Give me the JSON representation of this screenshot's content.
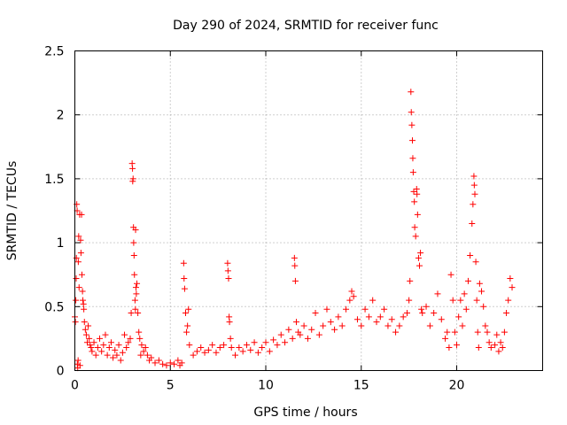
{
  "chart_data": {
    "type": "scatter",
    "title": "Day 290 of 2024, SRMTID for receiver func",
    "xlabel": "GPS time / hours",
    "ylabel": "SRMTID / TECUs",
    "xlim": [
      0,
      24.5
    ],
    "ylim": [
      0,
      2.5
    ],
    "xticks": [
      0,
      5,
      10,
      15,
      20
    ],
    "xtick_labels": [
      "0",
      "5",
      "10",
      "15",
      "20"
    ],
    "yticks": [
      0,
      0.5,
      1,
      1.5,
      2,
      2.5
    ],
    "ytick_labels": [
      "0",
      "0.5",
      "1",
      "1.5",
      "2",
      "2.5"
    ],
    "grid": true,
    "marker": "+",
    "color": "#ff0000",
    "series": [
      {
        "name": "SRMTID",
        "points": [
          [
            0.0,
            0.42
          ],
          [
            0.03,
            0.38
          ],
          [
            0.05,
            0.55
          ],
          [
            0.07,
            0.72
          ],
          [
            0.08,
            0.88
          ],
          [
            0.1,
            1.3
          ],
          [
            0.12,
            1.25
          ],
          [
            0.13,
            0.05
          ],
          [
            0.15,
            0.02
          ],
          [
            0.17,
            0.08
          ],
          [
            0.18,
            0.85
          ],
          [
            0.2,
            1.05
          ],
          [
            0.22,
            0.65
          ],
          [
            0.25,
            1.22
          ],
          [
            0.27,
            0.04
          ],
          [
            0.3,
            1.02
          ],
          [
            0.32,
            0.92
          ],
          [
            0.35,
            1.22
          ],
          [
            0.37,
            0.75
          ],
          [
            0.4,
            0.62
          ],
          [
            0.42,
            0.55
          ],
          [
            0.45,
            0.52
          ],
          [
            0.47,
            0.48
          ],
          [
            0.5,
            0.38
          ],
          [
            0.55,
            0.32
          ],
          [
            0.6,
            0.28
          ],
          [
            0.65,
            0.22
          ],
          [
            0.7,
            0.35
          ],
          [
            0.75,
            0.25
          ],
          [
            0.8,
            0.2
          ],
          [
            0.85,
            0.18
          ],
          [
            0.9,
            0.15
          ],
          [
            1.0,
            0.22
          ],
          [
            1.1,
            0.12
          ],
          [
            1.2,
            0.18
          ],
          [
            1.3,
            0.25
          ],
          [
            1.4,
            0.15
          ],
          [
            1.5,
            0.2
          ],
          [
            1.6,
            0.28
          ],
          [
            1.7,
            0.12
          ],
          [
            1.8,
            0.18
          ],
          [
            1.9,
            0.22
          ],
          [
            2.0,
            0.1
          ],
          [
            2.1,
            0.16
          ],
          [
            2.2,
            0.12
          ],
          [
            2.3,
            0.2
          ],
          [
            2.4,
            0.08
          ],
          [
            2.5,
            0.14
          ],
          [
            2.6,
            0.28
          ],
          [
            2.7,
            0.18
          ],
          [
            2.8,
            0.22
          ],
          [
            2.9,
            0.25
          ],
          [
            2.95,
            0.45
          ],
          [
            3.0,
            1.62
          ],
          [
            3.02,
            1.58
          ],
          [
            3.03,
            1.48
          ],
          [
            3.05,
            1.5
          ],
          [
            3.07,
            1.12
          ],
          [
            3.08,
            1.0
          ],
          [
            3.1,
            0.9
          ],
          [
            3.12,
            0.75
          ],
          [
            3.15,
            0.55
          ],
          [
            3.17,
            0.48
          ],
          [
            3.18,
            1.1
          ],
          [
            3.2,
            0.65
          ],
          [
            3.22,
            0.6
          ],
          [
            3.25,
            0.68
          ],
          [
            3.3,
            0.45
          ],
          [
            3.35,
            0.3
          ],
          [
            3.4,
            0.25
          ],
          [
            3.45,
            0.12
          ],
          [
            3.5,
            0.2
          ],
          [
            3.6,
            0.15
          ],
          [
            3.7,
            0.18
          ],
          [
            3.8,
            0.12
          ],
          [
            3.9,
            0.08
          ],
          [
            4.0,
            0.1
          ],
          [
            4.2,
            0.06
          ],
          [
            4.4,
            0.08
          ],
          [
            4.6,
            0.05
          ],
          [
            4.8,
            0.04
          ],
          [
            5.0,
            0.06
          ],
          [
            5.2,
            0.05
          ],
          [
            5.4,
            0.08
          ],
          [
            5.5,
            0.04
          ],
          [
            5.6,
            0.06
          ],
          [
            5.7,
            0.84
          ],
          [
            5.72,
            0.72
          ],
          [
            5.75,
            0.64
          ],
          [
            5.8,
            0.45
          ],
          [
            5.85,
            0.3
          ],
          [
            5.9,
            0.35
          ],
          [
            5.95,
            0.48
          ],
          [
            6.0,
            0.2
          ],
          [
            6.2,
            0.12
          ],
          [
            6.4,
            0.15
          ],
          [
            6.6,
            0.18
          ],
          [
            6.8,
            0.14
          ],
          [
            7.0,
            0.16
          ],
          [
            7.2,
            0.2
          ],
          [
            7.4,
            0.14
          ],
          [
            7.6,
            0.18
          ],
          [
            7.8,
            0.2
          ],
          [
            8.0,
            0.84
          ],
          [
            8.02,
            0.78
          ],
          [
            8.05,
            0.72
          ],
          [
            8.08,
            0.42
          ],
          [
            8.1,
            0.38
          ],
          [
            8.15,
            0.25
          ],
          [
            8.2,
            0.18
          ],
          [
            8.4,
            0.12
          ],
          [
            8.6,
            0.18
          ],
          [
            8.8,
            0.15
          ],
          [
            9.0,
            0.2
          ],
          [
            9.2,
            0.16
          ],
          [
            9.4,
            0.22
          ],
          [
            9.6,
            0.14
          ],
          [
            9.8,
            0.18
          ],
          [
            10.0,
            0.22
          ],
          [
            10.2,
            0.15
          ],
          [
            10.4,
            0.24
          ],
          [
            10.6,
            0.2
          ],
          [
            10.8,
            0.28
          ],
          [
            11.0,
            0.22
          ],
          [
            11.2,
            0.32
          ],
          [
            11.4,
            0.25
          ],
          [
            11.5,
            0.88
          ],
          [
            11.52,
            0.82
          ],
          [
            11.55,
            0.7
          ],
          [
            11.6,
            0.38
          ],
          [
            11.7,
            0.3
          ],
          [
            11.8,
            0.28
          ],
          [
            12.0,
            0.35
          ],
          [
            12.2,
            0.25
          ],
          [
            12.4,
            0.32
          ],
          [
            12.6,
            0.45
          ],
          [
            12.8,
            0.28
          ],
          [
            13.0,
            0.35
          ],
          [
            13.2,
            0.48
          ],
          [
            13.4,
            0.38
          ],
          [
            13.6,
            0.32
          ],
          [
            13.8,
            0.42
          ],
          [
            14.0,
            0.35
          ],
          [
            14.2,
            0.48
          ],
          [
            14.4,
            0.55
          ],
          [
            14.5,
            0.62
          ],
          [
            14.6,
            0.58
          ],
          [
            14.8,
            0.4
          ],
          [
            15.0,
            0.35
          ],
          [
            15.2,
            0.48
          ],
          [
            15.4,
            0.42
          ],
          [
            15.6,
            0.55
          ],
          [
            15.8,
            0.38
          ],
          [
            16.0,
            0.42
          ],
          [
            16.2,
            0.48
          ],
          [
            16.4,
            0.35
          ],
          [
            16.6,
            0.4
          ],
          [
            16.8,
            0.3
          ],
          [
            17.0,
            0.35
          ],
          [
            17.2,
            0.42
          ],
          [
            17.4,
            0.45
          ],
          [
            17.5,
            0.55
          ],
          [
            17.55,
            0.7
          ],
          [
            17.6,
            2.18
          ],
          [
            17.62,
            2.02
          ],
          [
            17.65,
            1.92
          ],
          [
            17.68,
            1.8
          ],
          [
            17.7,
            1.66
          ],
          [
            17.72,
            1.55
          ],
          [
            17.75,
            1.4
          ],
          [
            17.78,
            1.32
          ],
          [
            17.8,
            1.12
          ],
          [
            17.85,
            1.05
          ],
          [
            17.9,
            1.42
          ],
          [
            17.92,
            1.38
          ],
          [
            17.95,
            1.22
          ],
          [
            18.0,
            0.88
          ],
          [
            18.05,
            0.82
          ],
          [
            18.1,
            0.92
          ],
          [
            18.15,
            0.48
          ],
          [
            18.2,
            0.45
          ],
          [
            18.4,
            0.5
          ],
          [
            18.6,
            0.35
          ],
          [
            18.8,
            0.45
          ],
          [
            19.0,
            0.6
          ],
          [
            19.2,
            0.4
          ],
          [
            19.4,
            0.25
          ],
          [
            19.5,
            0.3
          ],
          [
            19.6,
            0.18
          ],
          [
            19.7,
            0.75
          ],
          [
            19.8,
            0.55
          ],
          [
            19.9,
            0.3
          ],
          [
            20.0,
            0.2
          ],
          [
            20.1,
            0.42
          ],
          [
            20.2,
            0.55
          ],
          [
            20.3,
            0.35
          ],
          [
            20.4,
            0.6
          ],
          [
            20.5,
            0.48
          ],
          [
            20.6,
            0.7
          ],
          [
            20.7,
            0.9
          ],
          [
            20.8,
            1.15
          ],
          [
            20.85,
            1.3
          ],
          [
            20.9,
            1.52
          ],
          [
            20.92,
            1.45
          ],
          [
            20.95,
            1.38
          ],
          [
            21.0,
            0.85
          ],
          [
            21.05,
            0.55
          ],
          [
            21.1,
            0.3
          ],
          [
            21.15,
            0.18
          ],
          [
            21.2,
            0.68
          ],
          [
            21.3,
            0.62
          ],
          [
            21.4,
            0.5
          ],
          [
            21.5,
            0.35
          ],
          [
            21.6,
            0.3
          ],
          [
            21.7,
            0.22
          ],
          [
            21.8,
            0.18
          ],
          [
            22.0,
            0.2
          ],
          [
            22.1,
            0.28
          ],
          [
            22.2,
            0.15
          ],
          [
            22.3,
            0.22
          ],
          [
            22.4,
            0.18
          ],
          [
            22.5,
            0.3
          ],
          [
            22.6,
            0.45
          ],
          [
            22.7,
            0.55
          ],
          [
            22.8,
            0.72
          ],
          [
            22.9,
            0.65
          ]
        ]
      }
    ]
  }
}
